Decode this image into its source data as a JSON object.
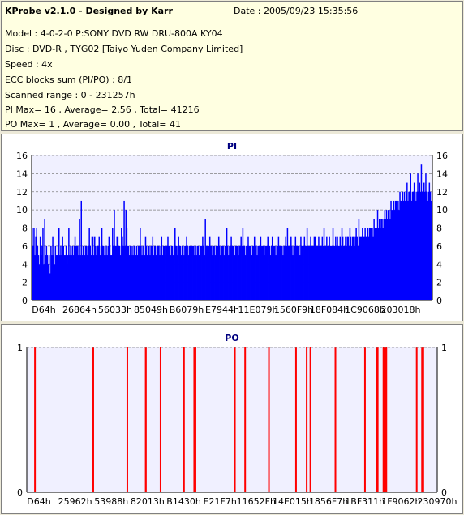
{
  "header": {
    "title": "KProbe v2.1.0 - Designed by Karr",
    "date": "Date : 2005/09/23 15:35:56",
    "lines": [
      "Model : 4-0-2-0 P:SONY    DVD RW DRU-800A  KY04",
      "Disc : DVD-R , TYG02 [Taiyo Yuden Company Limited]",
      "Speed : 4x",
      "ECC blocks sum (PI/PO) : 8/1",
      "Scanned range : 0 - 231257h",
      "PI Max= 16 , Average= 2.56 , Total= 41216",
      "PO Max= 1 , Average= 0.00 , Total= 41"
    ]
  },
  "chart_data": [
    {
      "type": "bar",
      "title": "PI",
      "ylim": [
        0,
        16
      ],
      "yticks": [
        0,
        2,
        4,
        6,
        8,
        10,
        12,
        14,
        16
      ],
      "xticks": [
        "D64h",
        "26864h",
        "56033h",
        "85049h",
        "B6079h",
        "E7944h",
        "11E079h",
        "1560F9h",
        "18F084h",
        "1C9068h",
        "203018h"
      ],
      "grid": true,
      "color": "#0000ff",
      "values": [
        8,
        6,
        8,
        5,
        7,
        8,
        6,
        5,
        4,
        7,
        5,
        6,
        8,
        4,
        9,
        5,
        6,
        5,
        4,
        5,
        3,
        6,
        5,
        7,
        5,
        4,
        6,
        5,
        5,
        6,
        8,
        5,
        6,
        5,
        7,
        6,
        5,
        5,
        6,
        4,
        5,
        8,
        5,
        6,
        5,
        6,
        5,
        6,
        7,
        6,
        6,
        6,
        5,
        9,
        5,
        11,
        5,
        6,
        6,
        5,
        6,
        6,
        5,
        6,
        8,
        6,
        5,
        7,
        7,
        5,
        7,
        6,
        5,
        6,
        6,
        7,
        5,
        6,
        8,
        6,
        6,
        5,
        5,
        6,
        5,
        6,
        7,
        6,
        5,
        5,
        8,
        6,
        10,
        6,
        6,
        7,
        7,
        6,
        6,
        5,
        8,
        7,
        6,
        11,
        6,
        10,
        8,
        6,
        6,
        5,
        6,
        5,
        6,
        5,
        6,
        6,
        5,
        6,
        5,
        6,
        6,
        8,
        6,
        5,
        6,
        5,
        5,
        7,
        6,
        5,
        6,
        6,
        5,
        6,
        6,
        7,
        5,
        6,
        6,
        5,
        6,
        6,
        6,
        5,
        6,
        7,
        5,
        6,
        6,
        5,
        6,
        6,
        7,
        6,
        6,
        5,
        6,
        6,
        5,
        6,
        8,
        6,
        6,
        5,
        7,
        6,
        6,
        5,
        6,
        6,
        5,
        6,
        6,
        7,
        6,
        5,
        6,
        6,
        5,
        6,
        6,
        6,
        5,
        6,
        5,
        6,
        6,
        5,
        6,
        6,
        6,
        7,
        6,
        5,
        9,
        6,
        6,
        5,
        6,
        7,
        6,
        6,
        5,
        6,
        6,
        5,
        6,
        6,
        6,
        7,
        6,
        5,
        6,
        6,
        6,
        5,
        6,
        6,
        8,
        6,
        5,
        6,
        6,
        7,
        6,
        6,
        6,
        5,
        6,
        6,
        6,
        5,
        6,
        6,
        7,
        6,
        8,
        6,
        6,
        5,
        6,
        6,
        7,
        6,
        6,
        6,
        5,
        6,
        6,
        7,
        6,
        6,
        5,
        6,
        6,
        6,
        7,
        6,
        6,
        6,
        5,
        6,
        6,
        6,
        7,
        6,
        6,
        5,
        6,
        7,
        6,
        6,
        6,
        5,
        6,
        6,
        7,
        6,
        6,
        6,
        6,
        5,
        6,
        6,
        7,
        6,
        8,
        6,
        6,
        6,
        7,
        6,
        5,
        6,
        6,
        7,
        6,
        6,
        6,
        6,
        5,
        7,
        6,
        6,
        6,
        7,
        6,
        6,
        8,
        6,
        6,
        6,
        7,
        6,
        6,
        6,
        7,
        7,
        6,
        6,
        6,
        7,
        6,
        6,
        6,
        7,
        6,
        8,
        6,
        6,
        7,
        6,
        6,
        7,
        6,
        6,
        6,
        8,
        6,
        6,
        7,
        6,
        7,
        6,
        6,
        7,
        6,
        8,
        7,
        6,
        6,
        7,
        6,
        7,
        7,
        6,
        8,
        7,
        6,
        7,
        7,
        6,
        7,
        8,
        7,
        6,
        9,
        7,
        7,
        7,
        8,
        7,
        7,
        8,
        7,
        7,
        8,
        7,
        8,
        8,
        8,
        8,
        7,
        9,
        8,
        8,
        8,
        10,
        8,
        9,
        8,
        9,
        9,
        8,
        9,
        10,
        9,
        10,
        9,
        10,
        10,
        9,
        11,
        10,
        10,
        11,
        10,
        11,
        11,
        10,
        11,
        10,
        12,
        11,
        11,
        12,
        11,
        12,
        11,
        12,
        13,
        11,
        12,
        12,
        14,
        11,
        12,
        12,
        13,
        12,
        11,
        12,
        14,
        12,
        13,
        12,
        15,
        12,
        11,
        13,
        12,
        14,
        12,
        11,
        12,
        13,
        12,
        11,
        12
      ]
    },
    {
      "type": "bar",
      "title": "PO",
      "ylim": [
        0,
        1
      ],
      "yticks": [
        0,
        1
      ],
      "xticks": [
        "D64h",
        "25962h",
        "53988h",
        "82013h",
        "B1430h",
        "E21F7h",
        "11652Fh",
        "14E015h",
        "1856F7h",
        "1BF311h",
        "1F9062h",
        "230970h"
      ],
      "grid": true,
      "color": "#ff0000",
      "x_fractions": [
        0.02,
        0.161,
        0.162,
        0.245,
        0.29,
        0.29,
        0.326,
        0.383,
        0.408,
        0.411,
        0.507,
        0.532,
        0.59,
        0.656,
        0.682,
        0.691,
        0.752,
        0.824,
        0.852,
        0.855,
        0.869,
        0.871,
        0.874,
        0.876,
        0.95,
        0.963,
        0.966
      ],
      "values": [
        1,
        1,
        1,
        1,
        1,
        1,
        1,
        1,
        1,
        1,
        1,
        1,
        1,
        1,
        1,
        1,
        1,
        1,
        1,
        1,
        1,
        1,
        1,
        1,
        1,
        1,
        1
      ]
    }
  ]
}
